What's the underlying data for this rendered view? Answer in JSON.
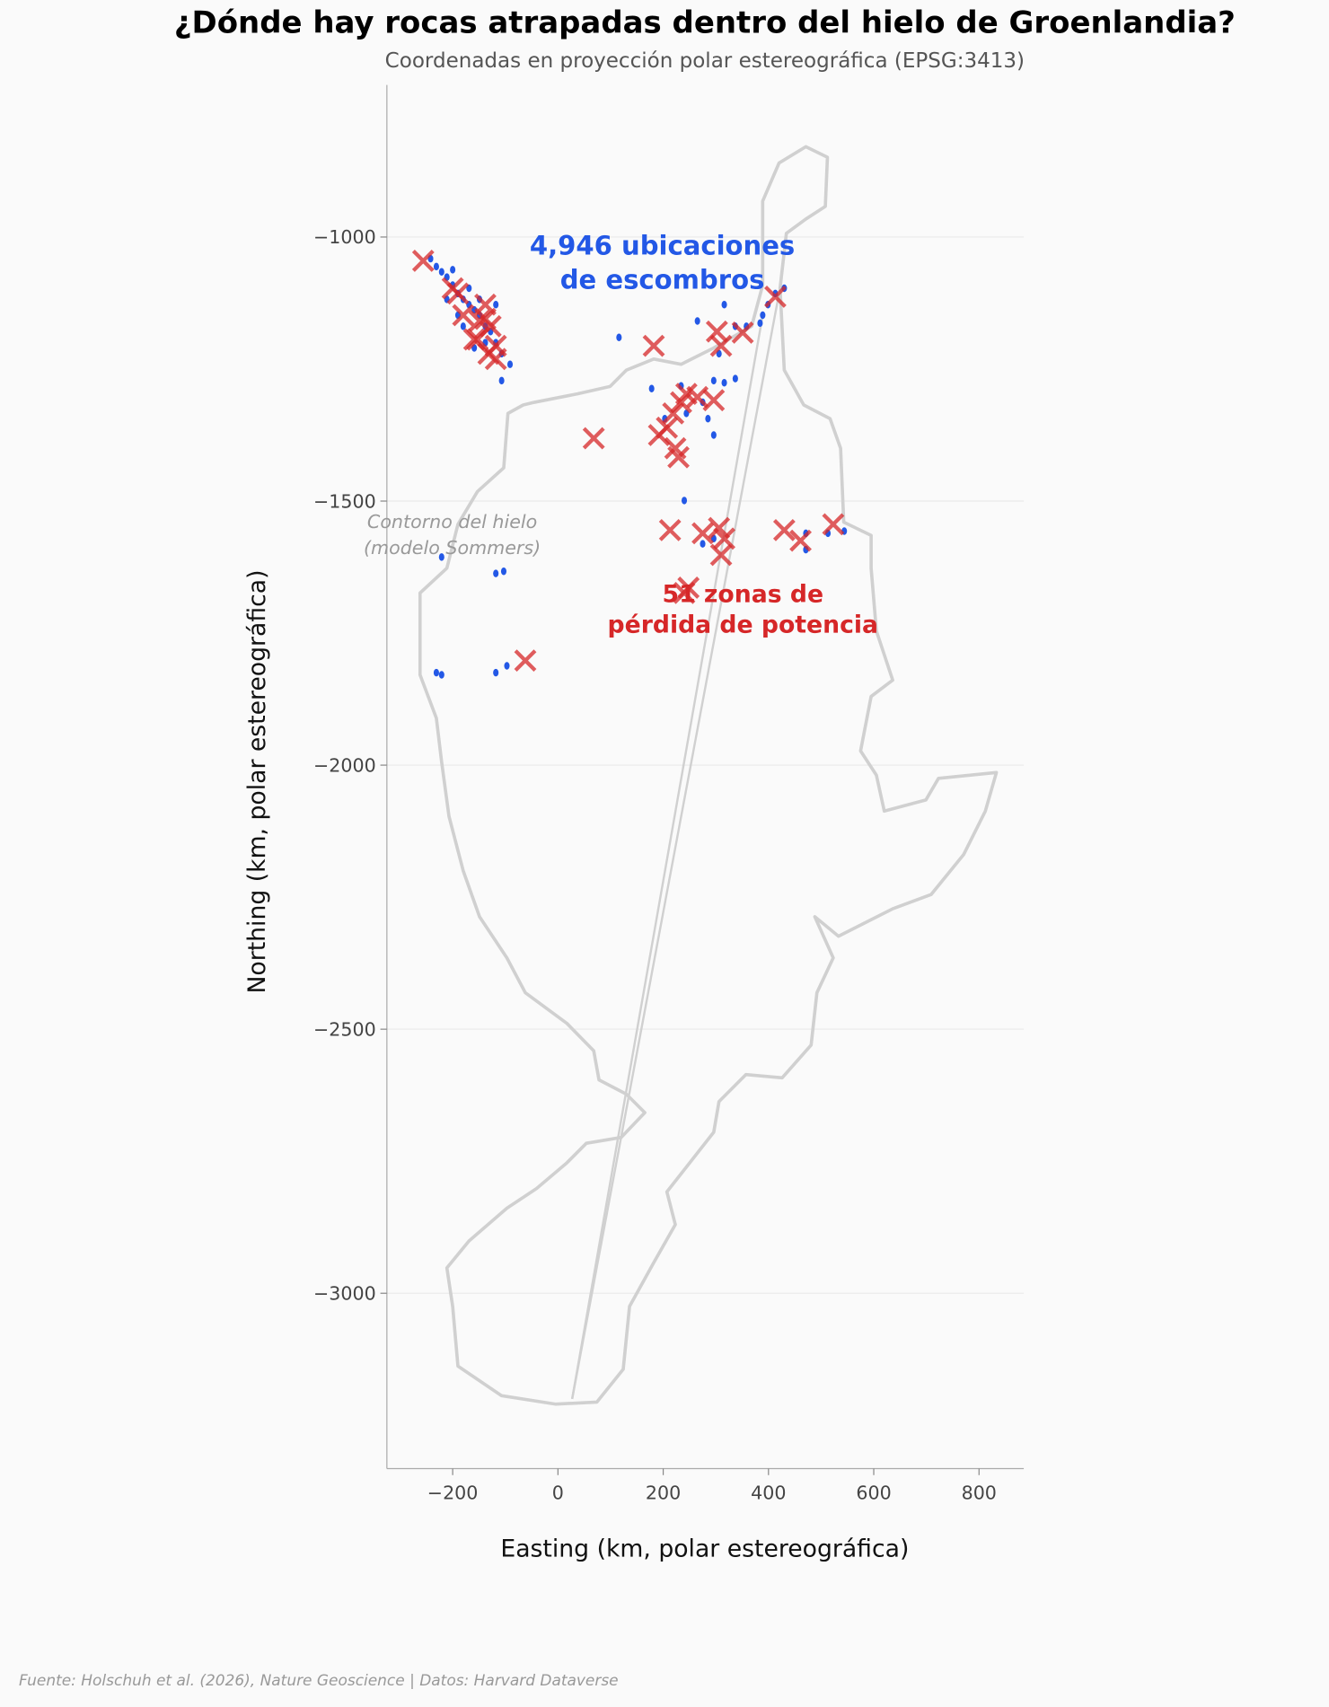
{
  "chart_data": {
    "type": "scatter",
    "title": "¿Dónde hay rocas atrapadas dentro del hielo de Groenlandia?",
    "subtitle": "Coordenadas en proyección polar estereográfica (EPSG:3413)",
    "xlabel": "Easting (km, polar estereográfica)",
    "ylabel": "Northing (km, polar estereográfica)",
    "xlim": [
      -325,
      885
    ],
    "ylim": [
      -3332,
      -712
    ],
    "xticks": [
      -200,
      0,
      200,
      400,
      600,
      800
    ],
    "xtick_labels": [
      "−200",
      "0",
      "200",
      "400",
      "600",
      "800"
    ],
    "yticks": [
      -1000,
      -1500,
      -2000,
      -2500,
      -3000
    ],
    "ytick_labels": [
      "−1000",
      "−1500",
      "−2000",
      "−2500",
      "−3000"
    ],
    "grid": "horizontal",
    "colors": {
      "debris": "#2358e6",
      "power_loss": "#d62728",
      "outline": "#d0d0d0",
      "background": "#fafafa"
    },
    "annotations": {
      "debris_line1": "4,946 ubicaciones",
      "debris_line2": "de escombros",
      "outline_line1": "Contorno del hielo",
      "outline_line2": "(modelo Sommers)",
      "power_line1": "51 zonas de",
      "power_line2": "pérdida de potencia"
    },
    "footer": "Fuente: Holschuh et al. (2026), Nature Geoscience | Datos: Harvard Dataverse",
    "ice_outline": [
      [
        -66,
        -1318
      ],
      [
        -45,
        -1313
      ],
      [
        37,
        -1297
      ],
      [
        99,
        -1283
      ],
      [
        130,
        -1252
      ],
      [
        182,
        -1231
      ],
      [
        234,
        -1241
      ],
      [
        296,
        -1210
      ],
      [
        368,
        -1169
      ],
      [
        389,
        -1091
      ],
      [
        389,
        -932
      ],
      [
        420,
        -860
      ],
      [
        471,
        -829
      ],
      [
        512,
        -849
      ],
      [
        508,
        -942
      ],
      [
        471,
        -966
      ],
      [
        434,
        -993
      ],
      [
        422,
        -1097
      ],
      [
        430,
        -1252
      ],
      [
        467,
        -1318
      ],
      [
        517,
        -1344
      ],
      [
        537,
        -1400
      ],
      [
        543,
        -1540
      ],
      [
        595,
        -1565
      ],
      [
        595,
        -1627
      ],
      [
        605,
        -1746
      ],
      [
        636,
        -1839
      ],
      [
        595,
        -1870
      ],
      [
        575,
        -1973
      ],
      [
        605,
        -2019
      ],
      [
        620,
        -2087
      ],
      [
        699,
        -2066
      ],
      [
        723,
        -2025
      ],
      [
        833,
        -2014
      ],
      [
        812,
        -2087
      ],
      [
        771,
        -2169
      ],
      [
        709,
        -2245
      ],
      [
        636,
        -2272
      ],
      [
        533,
        -2324
      ],
      [
        488,
        -2287
      ],
      [
        523,
        -2365
      ],
      [
        492,
        -2431
      ],
      [
        481,
        -2530
      ],
      [
        426,
        -2592
      ],
      [
        357,
        -2586
      ],
      [
        306,
        -2637
      ],
      [
        296,
        -2695
      ],
      [
        207,
        -2808
      ],
      [
        223,
        -2870
      ],
      [
        182,
        -2942
      ],
      [
        136,
        -3025
      ],
      [
        124,
        -3144
      ],
      [
        74,
        -3206
      ],
      [
        -4,
        -3210
      ],
      [
        -107,
        -3194
      ],
      [
        -190,
        -3138
      ],
      [
        -200,
        -3025
      ],
      [
        -211,
        -2952
      ],
      [
        -169,
        -2901
      ],
      [
        -97,
        -2839
      ],
      [
        -41,
        -2802
      ],
      [
        17,
        -2753
      ],
      [
        54,
        -2716
      ],
      [
        120,
        -2705
      ],
      [
        165,
        -2658
      ],
      [
        130,
        -2623
      ],
      [
        78,
        -2596
      ],
      [
        68,
        -2541
      ],
      [
        17,
        -2489
      ],
      [
        -62,
        -2431
      ],
      [
        -97,
        -2365
      ],
      [
        -149,
        -2287
      ],
      [
        -180,
        -2200
      ],
      [
        -207,
        -2097
      ],
      [
        -221,
        -1994
      ],
      [
        -231,
        -1911
      ],
      [
        -262,
        -1829
      ],
      [
        -262,
        -1674
      ],
      [
        -211,
        -1627
      ],
      [
        -190,
        -1544
      ],
      [
        -153,
        -1482
      ],
      [
        -103,
        -1437
      ],
      [
        -95,
        -1334
      ]
    ],
    "outline_artifacts": [
      [
        [
          27,
          -3200
        ],
        [
          389,
          -1148
        ]
      ],
      [
        [
          27,
          -3200
        ],
        [
          420,
          -1107
        ]
      ]
    ],
    "debris_points": [
      [
        -242,
        -1041
      ],
      [
        -231,
        -1056
      ],
      [
        -221,
        -1066
      ],
      [
        -211,
        -1076
      ],
      [
        -200,
        -1091
      ],
      [
        -190,
        -1107
      ],
      [
        -180,
        -1118
      ],
      [
        -169,
        -1128
      ],
      [
        -159,
        -1138
      ],
      [
        -149,
        -1148
      ],
      [
        -138,
        -1169
      ],
      [
        -128,
        -1179
      ],
      [
        -118,
        -1200
      ],
      [
        -107,
        -1221
      ],
      [
        -91,
        -1241
      ],
      [
        -190,
        -1148
      ],
      [
        -180,
        -1169
      ],
      [
        -159,
        -1210
      ],
      [
        -138,
        -1200
      ],
      [
        -211,
        -1118
      ],
      [
        -118,
        -1128
      ],
      [
        -149,
        -1118
      ],
      [
        -169,
        -1097
      ],
      [
        -200,
        -1062
      ],
      [
        -107,
        -1272
      ],
      [
        116,
        -1190
      ],
      [
        178,
        -1287
      ],
      [
        234,
        -1282
      ],
      [
        244,
        -1334
      ],
      [
        296,
        -1272
      ],
      [
        316,
        -1276
      ],
      [
        337,
        -1268
      ],
      [
        285,
        -1344
      ],
      [
        296,
        -1375
      ],
      [
        275,
        -1313
      ],
      [
        306,
        -1221
      ],
      [
        265,
        -1159
      ],
      [
        316,
        -1128
      ],
      [
        337,
        -1169
      ],
      [
        389,
        -1148
      ],
      [
        399,
        -1128
      ],
      [
        413,
        -1107
      ],
      [
        430,
        -1097
      ],
      [
        384,
        -1163
      ],
      [
        358,
        -1169
      ],
      [
        203,
        -1344
      ],
      [
        240,
        -1499
      ],
      [
        275,
        -1581
      ],
      [
        296,
        -1571
      ],
      [
        471,
        -1561
      ],
      [
        513,
        -1561
      ],
      [
        544,
        -1557
      ],
      [
        471,
        -1592
      ],
      [
        -221,
        -1606
      ],
      [
        -118,
        -1637
      ],
      [
        -103,
        -1633
      ],
      [
        -231,
        -1825
      ],
      [
        -221,
        -1829
      ],
      [
        -97,
        -1812
      ],
      [
        -118,
        -1825
      ]
    ],
    "power_loss_points": [
      [
        -256,
        -1045
      ],
      [
        -200,
        -1097
      ],
      [
        -190,
        -1107
      ],
      [
        -138,
        -1128
      ],
      [
        -180,
        -1148
      ],
      [
        -149,
        -1159
      ],
      [
        -128,
        -1169
      ],
      [
        -153,
        -1194
      ],
      [
        -118,
        -1206
      ],
      [
        -132,
        -1221
      ],
      [
        -118,
        -1231
      ],
      [
        182,
        -1206
      ],
      [
        68,
        -1381
      ],
      [
        302,
        -1179
      ],
      [
        310,
        -1206
      ],
      [
        351,
        -1181
      ],
      [
        413,
        -1113
      ],
      [
        192,
        -1375
      ],
      [
        207,
        -1361
      ],
      [
        219,
        -1334
      ],
      [
        234,
        -1313
      ],
      [
        244,
        -1297
      ],
      [
        265,
        -1303
      ],
      [
        296,
        -1309
      ],
      [
        223,
        -1400
      ],
      [
        229,
        -1417
      ],
      [
        213,
        -1555
      ],
      [
        275,
        -1561
      ],
      [
        306,
        -1551
      ],
      [
        316,
        -1571
      ],
      [
        310,
        -1602
      ],
      [
        430,
        -1555
      ],
      [
        461,
        -1575
      ],
      [
        523,
        -1544
      ],
      [
        248,
        -1664
      ],
      [
        240,
        -1674
      ],
      [
        -62,
        -1802
      ],
      [
        -159,
        -1194
      ],
      [
        -138,
        -1155
      ]
    ]
  }
}
